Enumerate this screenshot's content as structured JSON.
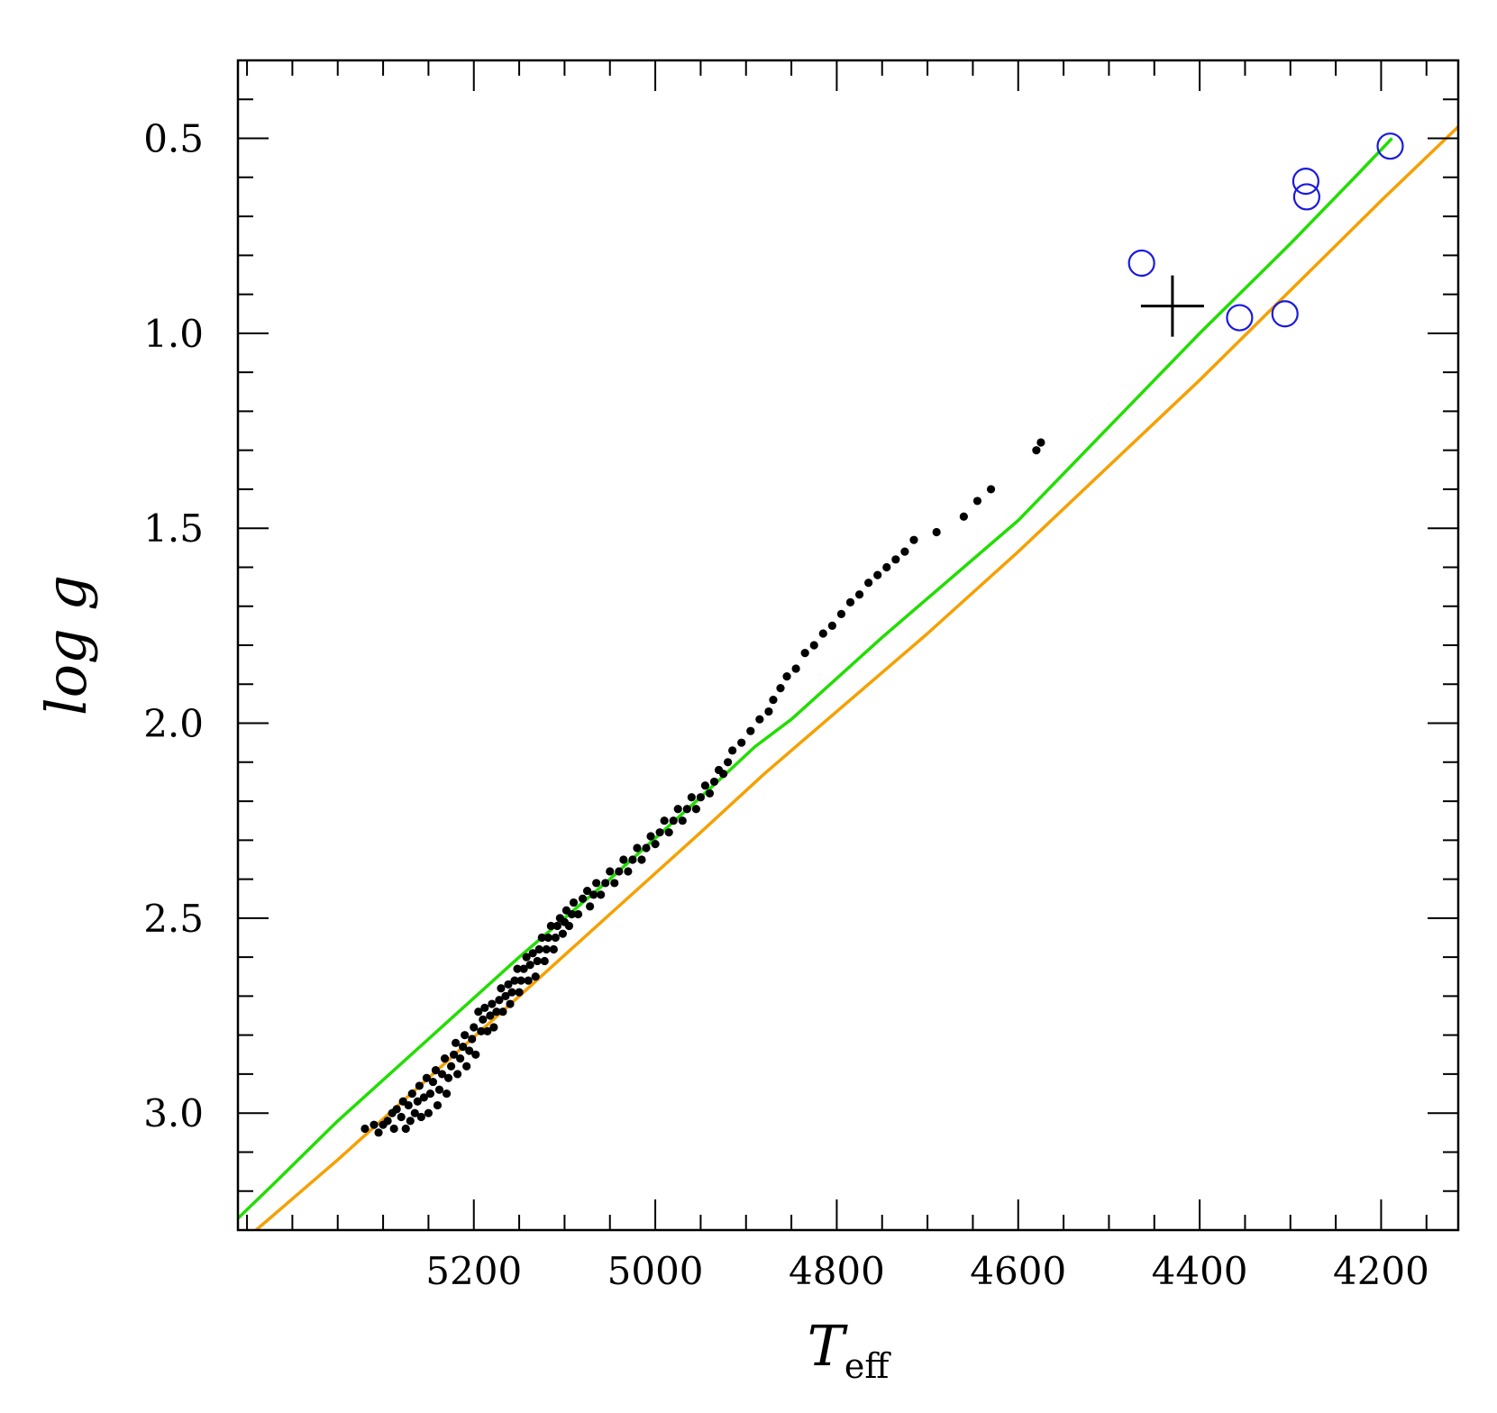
{
  "chart_data": {
    "type": "scatter",
    "title": "",
    "xlabel": "T",
    "xlabel_sub": "eff",
    "ylabel": "log g",
    "xlim": [
      5460,
      4115
    ],
    "ylim": [
      0.3,
      3.3
    ],
    "x_reversed": true,
    "y_reversed": true,
    "grid": false,
    "x_ticks": [
      5200,
      5000,
      4800,
      4600,
      4400,
      4200
    ],
    "x_tick_labels": [
      "5200",
      "5000",
      "4800",
      "4600",
      "4400",
      "4200"
    ],
    "y_ticks": [
      0.5,
      1.0,
      1.5,
      2.0,
      2.5,
      3.0
    ],
    "y_tick_labels": [
      "0.5",
      "1.0",
      "1.5",
      "2.0",
      "2.5",
      "3.0"
    ],
    "x_minor_step": 50,
    "y_minor_step": 0.1,
    "lines": [
      {
        "color": "#22dd00",
        "points": [
          [
            5460,
            3.27
          ],
          [
            5420,
            3.18
          ],
          [
            5350,
            3.02
          ],
          [
            5250,
            2.81
          ],
          [
            5150,
            2.6
          ],
          [
            5050,
            2.4
          ],
          [
            4950,
            2.19
          ],
          [
            4890,
            2.06
          ],
          [
            4850,
            1.99
          ],
          [
            4750,
            1.78
          ],
          [
            4600,
            1.48
          ],
          [
            4500,
            1.24
          ],
          [
            4400,
            1.0
          ],
          [
            4300,
            0.77
          ],
          [
            4225,
            0.59
          ],
          [
            4188,
            0.5
          ]
        ]
      },
      {
        "color": "#f5a000",
        "points": [
          [
            5440,
            3.3
          ],
          [
            5420,
            3.26
          ],
          [
            5350,
            3.12
          ],
          [
            5250,
            2.91
          ],
          [
            5150,
            2.7
          ],
          [
            5050,
            2.49
          ],
          [
            4950,
            2.28
          ],
          [
            4880,
            2.13
          ],
          [
            4800,
            1.97
          ],
          [
            4700,
            1.77
          ],
          [
            4600,
            1.56
          ],
          [
            4500,
            1.34
          ],
          [
            4400,
            1.12
          ],
          [
            4300,
            0.89
          ],
          [
            4200,
            0.66
          ],
          [
            4115,
            0.47
          ]
        ]
      }
    ],
    "series": [
      {
        "marker": "dot",
        "color": "#000000",
        "points": [
          [
            5320,
            3.04
          ],
          [
            5310,
            3.03
          ],
          [
            5305,
            3.05
          ],
          [
            5300,
            3.03
          ],
          [
            5295,
            3.02
          ],
          [
            5290,
            3.0
          ],
          [
            5288,
            3.04
          ],
          [
            5285,
            2.99
          ],
          [
            5280,
            3.01
          ],
          [
            5278,
            2.97
          ],
          [
            5275,
            3.04
          ],
          [
            5272,
            2.98
          ],
          [
            5270,
            3.02
          ],
          [
            5268,
            2.95
          ],
          [
            5265,
            3.0
          ],
          [
            5262,
            2.97
          ],
          [
            5260,
            2.93
          ],
          [
            5258,
            3.01
          ],
          [
            5255,
            2.96
          ],
          [
            5252,
            2.91
          ],
          [
            5250,
            3.0
          ],
          [
            5248,
            2.95
          ],
          [
            5245,
            2.92
          ],
          [
            5242,
            2.89
          ],
          [
            5240,
            2.98
          ],
          [
            5238,
            2.94
          ],
          [
            5235,
            2.9
          ],
          [
            5232,
            2.86
          ],
          [
            5230,
            2.95
          ],
          [
            5228,
            2.91
          ],
          [
            5225,
            2.88
          ],
          [
            5222,
            2.85
          ],
          [
            5220,
            2.82
          ],
          [
            5218,
            2.9
          ],
          [
            5215,
            2.86
          ],
          [
            5212,
            2.83
          ],
          [
            5210,
            2.8
          ],
          [
            5208,
            2.88
          ],
          [
            5205,
            2.84
          ],
          [
            5202,
            2.81
          ],
          [
            5200,
            2.78
          ],
          [
            5198,
            2.85
          ],
          [
            5195,
            2.74
          ],
          [
            5192,
            2.79
          ],
          [
            5190,
            2.76
          ],
          [
            5188,
            2.73
          ],
          [
            5185,
            2.79
          ],
          [
            5182,
            2.75
          ],
          [
            5180,
            2.72
          ],
          [
            5178,
            2.78
          ],
          [
            5175,
            2.74
          ],
          [
            5172,
            2.71
          ],
          [
            5170,
            2.68
          ],
          [
            5168,
            2.74
          ],
          [
            5165,
            2.7
          ],
          [
            5162,
            2.67
          ],
          [
            5160,
            2.72
          ],
          [
            5158,
            2.69
          ],
          [
            5155,
            2.66
          ],
          [
            5152,
            2.63
          ],
          [
            5150,
            2.69
          ],
          [
            5148,
            2.66
          ],
          [
            5145,
            2.63
          ],
          [
            5142,
            2.6
          ],
          [
            5140,
            2.66
          ],
          [
            5138,
            2.62
          ],
          [
            5135,
            2.59
          ],
          [
            5132,
            2.65
          ],
          [
            5130,
            2.61
          ],
          [
            5128,
            2.58
          ],
          [
            5125,
            2.55
          ],
          [
            5122,
            2.61
          ],
          [
            5120,
            2.58
          ],
          [
            5118,
            2.55
          ],
          [
            5115,
            2.52
          ],
          [
            5112,
            2.58
          ],
          [
            5110,
            2.55
          ],
          [
            5108,
            2.52
          ],
          [
            5105,
            2.5
          ],
          [
            5102,
            2.54
          ],
          [
            5100,
            2.51
          ],
          [
            5098,
            2.48
          ],
          [
            5095,
            2.52
          ],
          [
            5092,
            2.49
          ],
          [
            5090,
            2.46
          ],
          [
            5085,
            2.49
          ],
          [
            5080,
            2.45
          ],
          [
            5075,
            2.43
          ],
          [
            5072,
            2.47
          ],
          [
            5068,
            2.44
          ],
          [
            5065,
            2.41
          ],
          [
            5060,
            2.44
          ],
          [
            5055,
            2.41
          ],
          [
            5050,
            2.38
          ],
          [
            5045,
            2.41
          ],
          [
            5040,
            2.38
          ],
          [
            5035,
            2.35
          ],
          [
            5030,
            2.38
          ],
          [
            5025,
            2.35
          ],
          [
            5020,
            2.32
          ],
          [
            5015,
            2.35
          ],
          [
            5010,
            2.32
          ],
          [
            5005,
            2.29
          ],
          [
            5000,
            2.31
          ],
          [
            4995,
            2.28
          ],
          [
            4990,
            2.25
          ],
          [
            4985,
            2.28
          ],
          [
            4980,
            2.25
          ],
          [
            4975,
            2.22
          ],
          [
            4970,
            2.25
          ],
          [
            4965,
            2.22
          ],
          [
            4960,
            2.19
          ],
          [
            4955,
            2.22
          ],
          [
            4950,
            2.19
          ],
          [
            4945,
            2.16
          ],
          [
            4940,
            2.18
          ],
          [
            4935,
            2.15
          ],
          [
            4930,
            2.12
          ],
          [
            4925,
            2.13
          ],
          [
            4920,
            2.1
          ],
          [
            4915,
            2.07
          ],
          [
            4905,
            2.05
          ],
          [
            4895,
            2.02
          ],
          [
            4885,
            1.99
          ],
          [
            4875,
            1.97
          ],
          [
            4870,
            1.94
          ],
          [
            4862,
            1.91
          ],
          [
            4855,
            1.88
          ],
          [
            4845,
            1.86
          ],
          [
            4835,
            1.82
          ],
          [
            4825,
            1.8
          ],
          [
            4815,
            1.77
          ],
          [
            4805,
            1.75
          ],
          [
            4795,
            1.72
          ],
          [
            4785,
            1.69
          ],
          [
            4775,
            1.67
          ],
          [
            4765,
            1.64
          ],
          [
            4755,
            1.62
          ],
          [
            4745,
            1.6
          ],
          [
            4735,
            1.58
          ],
          [
            4725,
            1.56
          ],
          [
            4715,
            1.53
          ],
          [
            4690,
            1.51
          ],
          [
            4660,
            1.47
          ],
          [
            4645,
            1.43
          ],
          [
            4630,
            1.4
          ],
          [
            4580,
            1.3
          ],
          [
            4575,
            1.28
          ]
        ]
      },
      {
        "marker": "open-circle",
        "color": "#1a1adf",
        "points": [
          [
            4464,
            0.82
          ],
          [
            4356,
            0.96
          ],
          [
            4306,
            0.95
          ],
          [
            4283,
            0.61
          ],
          [
            4282,
            0.65
          ],
          [
            4190,
            0.52
          ]
        ]
      },
      {
        "marker": "cross",
        "color": "#000000",
        "points": [
          [
            4430,
            0.93
          ]
        ]
      }
    ]
  }
}
